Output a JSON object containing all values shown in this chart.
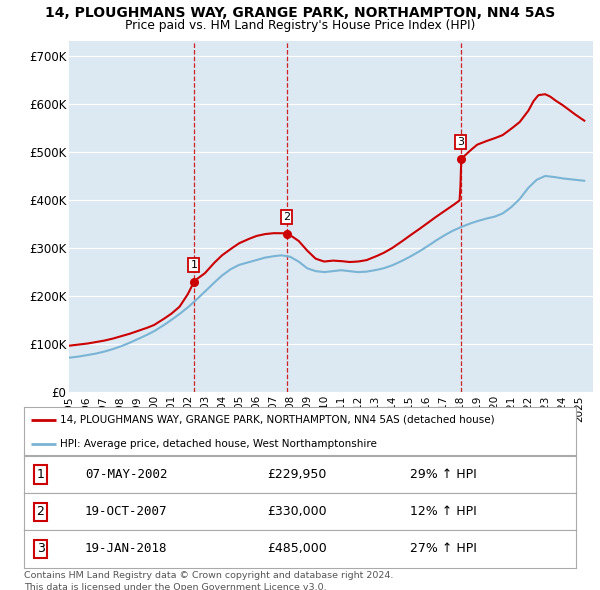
{
  "title": "14, PLOUGHMANS WAY, GRANGE PARK, NORTHAMPTON, NN4 5AS",
  "subtitle": "Price paid vs. HM Land Registry's House Price Index (HPI)",
  "price_color": "#cc0000",
  "hpi_color": "#7ab4d4",
  "plot_bg_color": "#dce8f2",
  "yticks": [
    0,
    100000,
    200000,
    300000,
    400000,
    500000,
    600000,
    700000
  ],
  "ytick_labels": [
    "£0",
    "£100K",
    "£200K",
    "£300K",
    "£400K",
    "£500K",
    "£600K",
    "£700K"
  ],
  "transactions": [
    {
      "date_num": 2002.35,
      "price": 229950,
      "label": "1"
    },
    {
      "date_num": 2007.8,
      "price": 330000,
      "label": "2"
    },
    {
      "date_num": 2018.05,
      "price": 485000,
      "label": "3"
    }
  ],
  "legend_entries": [
    "14, PLOUGHMANS WAY, GRANGE PARK, NORTHAMPTON, NN4 5AS (detached house)",
    "HPI: Average price, detached house, West Northamptonshire"
  ],
  "table_data": [
    [
      "1",
      "07-MAY-2002",
      "£229,950",
      "29% ↑ HPI"
    ],
    [
      "2",
      "19-OCT-2007",
      "£330,000",
      "12% ↑ HPI"
    ],
    [
      "3",
      "19-JAN-2018",
      "£485,000",
      "27% ↑ HPI"
    ]
  ],
  "footnote": "Contains HM Land Registry data © Crown copyright and database right 2024.\nThis data is licensed under the Open Government Licence v3.0.",
  "xmin": 1995.0,
  "xmax": 2025.8,
  "ylim_max": 730000,
  "hpi_pts_x": [
    1995.0,
    1995.5,
    1996.0,
    1996.5,
    1997.0,
    1997.5,
    1998.0,
    1998.5,
    1999.0,
    1999.5,
    2000.0,
    2000.5,
    2001.0,
    2001.5,
    2002.0,
    2002.5,
    2003.0,
    2003.5,
    2004.0,
    2004.5,
    2005.0,
    2005.5,
    2006.0,
    2006.5,
    2007.0,
    2007.5,
    2008.0,
    2008.5,
    2009.0,
    2009.5,
    2010.0,
    2010.5,
    2011.0,
    2011.5,
    2012.0,
    2012.5,
    2013.0,
    2013.5,
    2014.0,
    2014.5,
    2015.0,
    2015.5,
    2016.0,
    2016.5,
    2017.0,
    2017.5,
    2018.0,
    2018.5,
    2019.0,
    2019.5,
    2020.0,
    2020.5,
    2021.0,
    2021.5,
    2022.0,
    2022.5,
    2023.0,
    2023.5,
    2024.0,
    2024.5,
    2025.3
  ],
  "hpi_pts_y": [
    72000,
    74000,
    77000,
    80000,
    84000,
    89000,
    95000,
    102000,
    110000,
    118000,
    127000,
    138000,
    150000,
    163000,
    177000,
    193000,
    210000,
    227000,
    243000,
    256000,
    265000,
    270000,
    275000,
    280000,
    283000,
    285000,
    282000,
    272000,
    258000,
    252000,
    250000,
    252000,
    254000,
    252000,
    250000,
    251000,
    254000,
    258000,
    264000,
    272000,
    281000,
    291000,
    302000,
    314000,
    325000,
    335000,
    343000,
    350000,
    356000,
    361000,
    365000,
    372000,
    385000,
    402000,
    425000,
    442000,
    450000,
    448000,
    445000,
    443000,
    440000
  ],
  "price_pts_x": [
    1995.0,
    1995.5,
    1996.0,
    1996.5,
    1997.0,
    1997.5,
    1998.0,
    1998.5,
    1999.0,
    1999.5,
    2000.0,
    2000.5,
    2001.0,
    2001.5,
    2002.0,
    2002.35,
    2002.5,
    2003.0,
    2003.5,
    2004.0,
    2004.5,
    2005.0,
    2005.5,
    2006.0,
    2006.5,
    2007.0,
    2007.5,
    2007.8,
    2008.0,
    2008.5,
    2009.0,
    2009.5,
    2010.0,
    2010.5,
    2011.0,
    2011.5,
    2012.0,
    2012.5,
    2013.0,
    2013.5,
    2014.0,
    2014.5,
    2015.0,
    2015.5,
    2016.0,
    2016.5,
    2017.0,
    2017.5,
    2018.0,
    2018.05,
    2018.5,
    2019.0,
    2019.5,
    2020.0,
    2020.5,
    2021.0,
    2021.5,
    2022.0,
    2022.3,
    2022.6,
    2023.0,
    2023.3,
    2023.6,
    2024.0,
    2024.3,
    2024.6,
    2025.0,
    2025.3
  ],
  "price_pts_y": [
    97000,
    99000,
    101000,
    104000,
    107000,
    111000,
    116000,
    121000,
    127000,
    133000,
    140000,
    151000,
    163000,
    178000,
    205000,
    229950,
    235000,
    248000,
    268000,
    285000,
    298000,
    310000,
    318000,
    325000,
    329000,
    331000,
    331000,
    330000,
    327000,
    315000,
    295000,
    278000,
    272000,
    274000,
    273000,
    271000,
    272000,
    275000,
    282000,
    290000,
    300000,
    312000,
    325000,
    337000,
    350000,
    363000,
    375000,
    387000,
    400000,
    485000,
    500000,
    515000,
    522000,
    528000,
    535000,
    548000,
    562000,
    585000,
    605000,
    618000,
    620000,
    615000,
    607000,
    598000,
    590000,
    582000,
    572000,
    565000
  ]
}
